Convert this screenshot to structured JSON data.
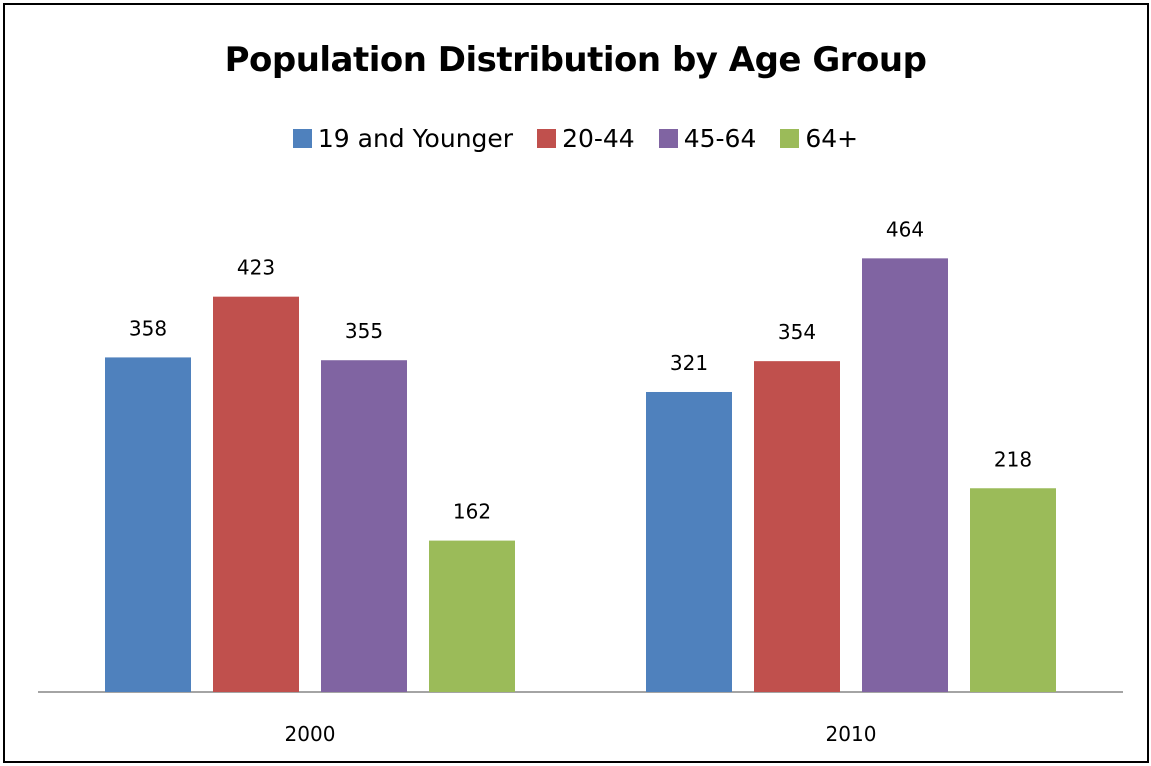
{
  "chart_data": {
    "type": "bar",
    "title": "Population Distribution by Age Group",
    "categories": [
      "2000",
      "2010"
    ],
    "series": [
      {
        "name": "19 and Younger",
        "color": "#4F81BD",
        "values": [
          358,
          321
        ]
      },
      {
        "name": "20-44",
        "color": "#C0504D",
        "values": [
          423,
          354
        ]
      },
      {
        "name": "45-64",
        "color": "#8064A2",
        "values": [
          355,
          464
        ]
      },
      {
        "name": "64+",
        "color": "#9BBB59",
        "values": [
          162,
          218
        ]
      }
    ],
    "xlabel": "",
    "ylabel": "",
    "ylim": [
      0,
      500
    ],
    "legend_position": "top",
    "grid": false,
    "data_labels": true
  }
}
